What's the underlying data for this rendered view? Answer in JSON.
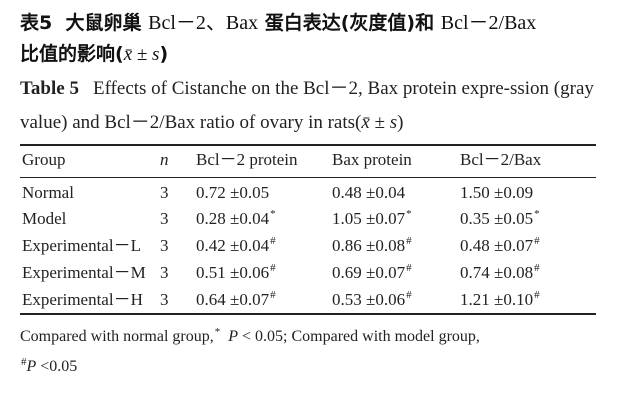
{
  "title_cn": {
    "label": "表5",
    "text1": "大鼠卵巢",
    "bcl": "Bcl－2、Bax",
    "text2": "蛋白表达(灰度值)和",
    "ratio": "Bcl－2/Bax",
    "text3": "比值的影响(",
    "meansd": "x̄ ± s",
    "close": ")"
  },
  "title_en": {
    "label": "Table 5",
    "text": "Effects of Cistanche on the Bcl－2, Bax protein expre-ssion (gray value) and Bcl－2/Bax ratio of ovary in rats(",
    "meansd": "x̄ ± s",
    "close": ")"
  },
  "table": {
    "headers": [
      "Group",
      "n",
      "Bcl－2 protein",
      "Bax protein",
      "Bcl－2/Bax"
    ],
    "rows": [
      {
        "group": "Normal",
        "n": "3",
        "bcl2": "0.72 ±0.05",
        "bcl2_mark": "",
        "bax": "0.48 ±0.04",
        "bax_mark": "",
        "ratio": "1.50 ±0.09",
        "ratio_mark": ""
      },
      {
        "group": "Model",
        "n": "3",
        "bcl2": "0.28 ±0.04",
        "bcl2_mark": "*",
        "bax": "1.05 ±0.07",
        "bax_mark": "*",
        "ratio": "0.35 ±0.05",
        "ratio_mark": "*"
      },
      {
        "group": "Experimental－L",
        "n": "3",
        "bcl2": "0.42 ±0.04",
        "bcl2_mark": "#",
        "bax": "0.86 ±0.08",
        "bax_mark": "#",
        "ratio": "0.48 ±0.07",
        "ratio_mark": "#"
      },
      {
        "group": "Experimental－M",
        "n": "3",
        "bcl2": "0.51 ±0.06",
        "bcl2_mark": "#",
        "bax": "0.69 ±0.07",
        "bax_mark": "#",
        "ratio": "0.74 ±0.08",
        "ratio_mark": "#"
      },
      {
        "group": "Experimental－H",
        "n": "3",
        "bcl2": "0.64 ±0.07",
        "bcl2_mark": "#",
        "bax": "0.53 ±0.06",
        "bax_mark": "#",
        "ratio": "1.21 ±0.10",
        "ratio_mark": "#"
      }
    ]
  },
  "footnote": {
    "line1_a": "Compared with normal group,",
    "line1_mark": "*",
    "line1_p": "P",
    "line1_b": "< 0.05; Compared with model group,",
    "line2_mark": "#",
    "line2_p": "P",
    "line2_b": "<0.05"
  }
}
